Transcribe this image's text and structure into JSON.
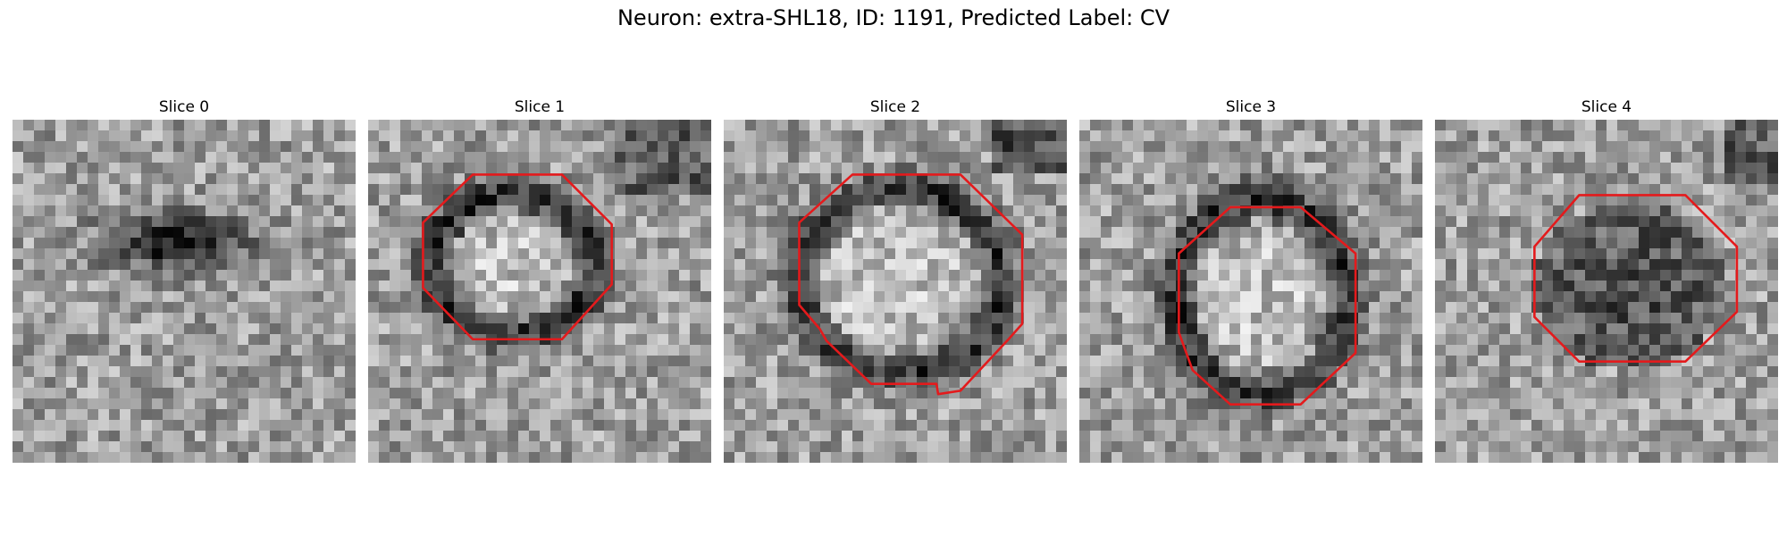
{
  "figure": {
    "title": "Neuron: extra-SHL18, ID: 1191, Predicted Label: CV"
  },
  "colors": {
    "contour": "#e41a1c",
    "background": "#ffffff"
  },
  "panels": [
    {
      "title": "Slice 0",
      "has_contour": false
    },
    {
      "title": "Slice 1",
      "has_contour": true
    },
    {
      "title": "Slice 2",
      "has_contour": true
    },
    {
      "title": "Slice 3",
      "has_contour": true
    },
    {
      "title": "Slice 4",
      "has_contour": true
    }
  ]
}
